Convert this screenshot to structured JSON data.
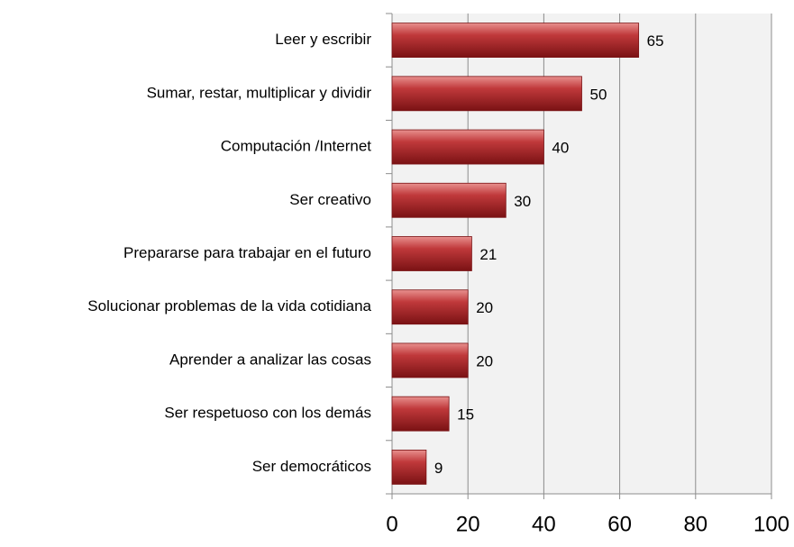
{
  "chart_data": {
    "type": "bar",
    "orientation": "horizontal",
    "categories": [
      "Leer y escribir",
      "Sumar, restar, multiplicar y dividir",
      "Computación /Internet",
      "Ser creativo",
      "Prepararse para trabajar en el futuro",
      "Solucionar problemas de la vida cotidiana",
      "Aprender a analizar las cosas",
      "Ser respetuoso con los demás",
      "Ser democráticos"
    ],
    "values": [
      65,
      50,
      40,
      30,
      21,
      20,
      20,
      15,
      9
    ],
    "color": "#c0393b",
    "xlim": [
      0,
      100
    ],
    "xticks": [
      0,
      20,
      40,
      60,
      80,
      100
    ],
    "grid": true
  }
}
